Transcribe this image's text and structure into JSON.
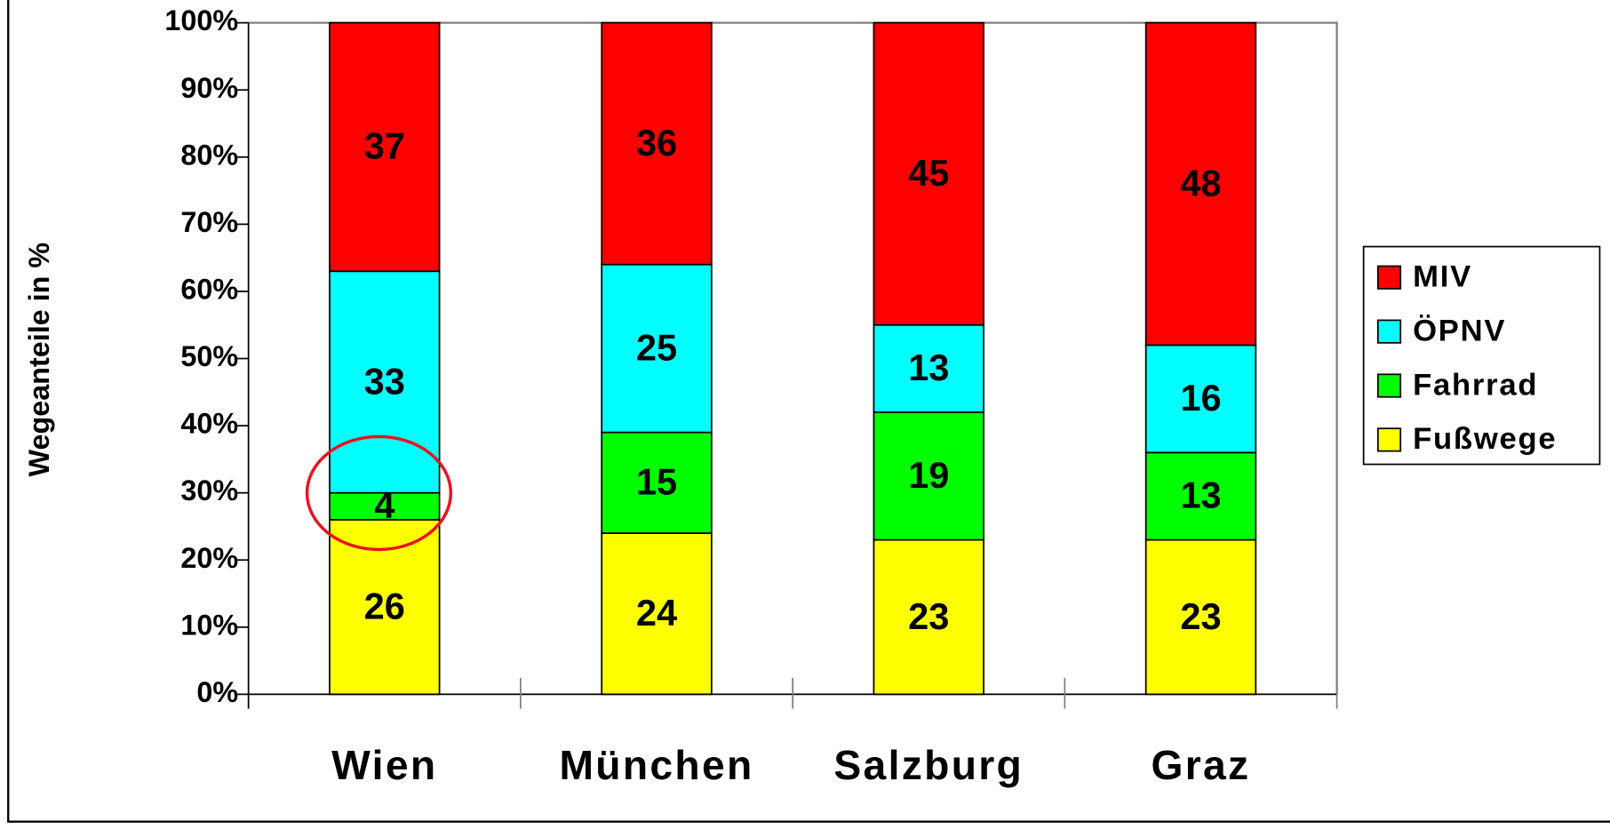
{
  "chart_data": {
    "type": "stacked_bar",
    "y_axis_label": "Wegeanteile in %",
    "categories": [
      "Wien",
      "München",
      "Salzburg",
      "Graz"
    ],
    "series": [
      {
        "name": "Fußwege",
        "color": "#ffff00",
        "values": [
          26,
          24,
          23,
          23
        ]
      },
      {
        "name": "Fahrrad",
        "color": "#00ff00",
        "values": [
          4,
          15,
          19,
          13
        ]
      },
      {
        "name": "ÖPNV",
        "color": "#00ffff",
        "values": [
          33,
          25,
          13,
          16
        ]
      },
      {
        "name": "MIV",
        "color": "#ff0000",
        "values": [
          37,
          36,
          45,
          48
        ]
      }
    ],
    "ylim": [
      0,
      100
    ],
    "yticks": [
      {
        "value": 0,
        "label": "0%"
      },
      {
        "value": 10,
        "label": "10%"
      },
      {
        "value": 20,
        "label": "20%"
      },
      {
        "value": 30,
        "label": "30%"
      },
      {
        "value": 40,
        "label": "40%"
      },
      {
        "value": 50,
        "label": "50%"
      },
      {
        "value": 60,
        "label": "60%"
      },
      {
        "value": 70,
        "label": "70%"
      },
      {
        "value": 80,
        "label": "80%"
      },
      {
        "value": 90,
        "label": "90%"
      },
      {
        "value": 100,
        "label": "100%"
      }
    ],
    "grid": false,
    "legend": "right"
  }
}
